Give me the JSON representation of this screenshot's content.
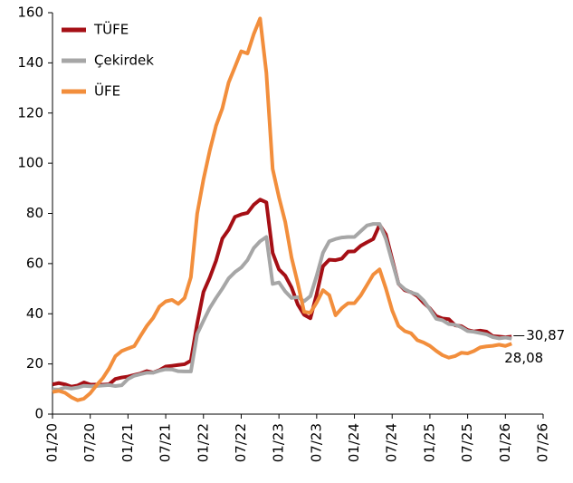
{
  "chart_data": {
    "type": "line",
    "categories": [
      "01/20",
      null,
      null,
      null,
      null,
      null,
      "07/20",
      null,
      null,
      null,
      null,
      null,
      "01/21",
      null,
      null,
      null,
      null,
      null,
      "07/21",
      null,
      null,
      null,
      null,
      null,
      "01/22",
      null,
      null,
      null,
      null,
      null,
      "07/22",
      null,
      null,
      null,
      null,
      null,
      "01/23",
      null,
      null,
      null,
      null,
      null,
      "07/23",
      null,
      null,
      null,
      null,
      null,
      "01/24",
      null,
      null,
      null,
      null,
      null,
      "07/24",
      null,
      null,
      null,
      null,
      null,
      "01/25",
      null,
      null,
      null,
      null,
      null,
      "07/25",
      null,
      null,
      null,
      null,
      null,
      "01/26",
      null,
      null,
      null,
      null,
      null,
      "07/26"
    ],
    "series": [
      {
        "name": "TÜFE",
        "color": "#a50f15",
        "end_label": "30,87",
        "values": [
          11.84,
          12.37,
          11.86,
          10.94,
          11.39,
          12.62,
          11.76,
          11.77,
          11.75,
          11.89,
          14.03,
          14.6,
          14.97,
          15.61,
          16.19,
          17.14,
          16.59,
          17.53,
          18.95,
          19.25,
          19.58,
          19.89,
          21.31,
          36.08,
          48.69,
          54.44,
          61.14,
          69.97,
          73.5,
          78.62,
          79.6,
          80.21,
          83.45,
          85.51,
          84.39,
          64.27,
          57.68,
          55.18,
          50.51,
          43.68,
          39.59,
          38.21,
          47.83,
          58.94,
          61.53,
          61.36,
          61.98,
          64.77,
          64.86,
          67.07,
          68.5,
          69.8,
          75.45,
          71.6,
          61.78,
          51.97,
          49.38,
          48.58,
          47.09,
          44.38,
          42.12,
          39.05,
          38.1,
          37.86,
          35.41,
          35.05,
          33.52,
          32.95,
          33.29,
          32.87,
          31.07,
          30.89,
          30.65,
          30.87,
          null,
          null,
          null,
          null,
          null
        ]
      },
      {
        "name": "Çekirdek",
        "color": "#a6a6a6",
        "values": [
          9.9,
          9.8,
          10.6,
          10.2,
          10.6,
          11.3,
          11.1,
          11.2,
          11.4,
          11.6,
          11.2,
          11.5,
          14.0,
          15.3,
          15.9,
          16.5,
          16.5,
          17.3,
          17.9,
          17.8,
          17.1,
          17.0,
          17.0,
          31.9,
          37.2,
          42.3,
          46.3,
          50.0,
          54.1,
          56.6,
          58.4,
          61.4,
          66.2,
          68.9,
          70.6,
          51.9,
          52.5,
          48.9,
          46.3,
          46.6,
          45.0,
          47.0,
          55.2,
          64.3,
          68.9,
          69.8,
          70.4,
          70.6,
          70.6,
          72.9,
          75.2,
          75.8,
          75.8,
          69.8,
          60.8,
          52.0,
          49.8,
          48.5,
          47.7,
          45.3,
          41.8,
          38.0,
          37.4,
          35.9,
          35.6,
          34.6,
          33.1,
          32.8,
          32.3,
          31.8,
          30.7,
          30.2,
          30.5,
          30.1,
          null,
          null,
          null,
          null,
          null
        ]
      },
      {
        "name": "ÜFE",
        "color": "#f28e3c",
        "end_label": "28,08",
        "values": [
          8.84,
          9.26,
          8.5,
          6.71,
          5.53,
          6.17,
          8.33,
          11.53,
          14.33,
          18.2,
          23.11,
          25.15,
          26.16,
          27.09,
          31.2,
          35.17,
          38.33,
          42.89,
          44.92,
          45.52,
          43.96,
          46.31,
          54.62,
          79.89,
          93.53,
          105.01,
          114.97,
          121.82,
          132.16,
          138.31,
          144.61,
          143.75,
          151.5,
          157.69,
          136.02,
          97.72,
          86.46,
          76.61,
          62.43,
          52.11,
          40.76,
          40.42,
          44.5,
          49.41,
          47.44,
          39.39,
          42.25,
          44.22,
          44.2,
          47.29,
          51.47,
          55.66,
          57.68,
          50.09,
          41.37,
          35.17,
          33.09,
          32.24,
          29.47,
          28.52,
          27.2,
          25.21,
          23.5,
          22.5,
          23.13,
          24.45,
          24.19,
          25.16,
          26.59,
          27.0,
          27.23,
          27.67,
          27.17,
          28.08,
          null,
          null,
          null,
          null,
          null
        ]
      }
    ],
    "ylim": [
      0,
      160
    ],
    "yticks": [
      0,
      20,
      40,
      60,
      80,
      100,
      120,
      140,
      160
    ],
    "legend": "top-left"
  }
}
